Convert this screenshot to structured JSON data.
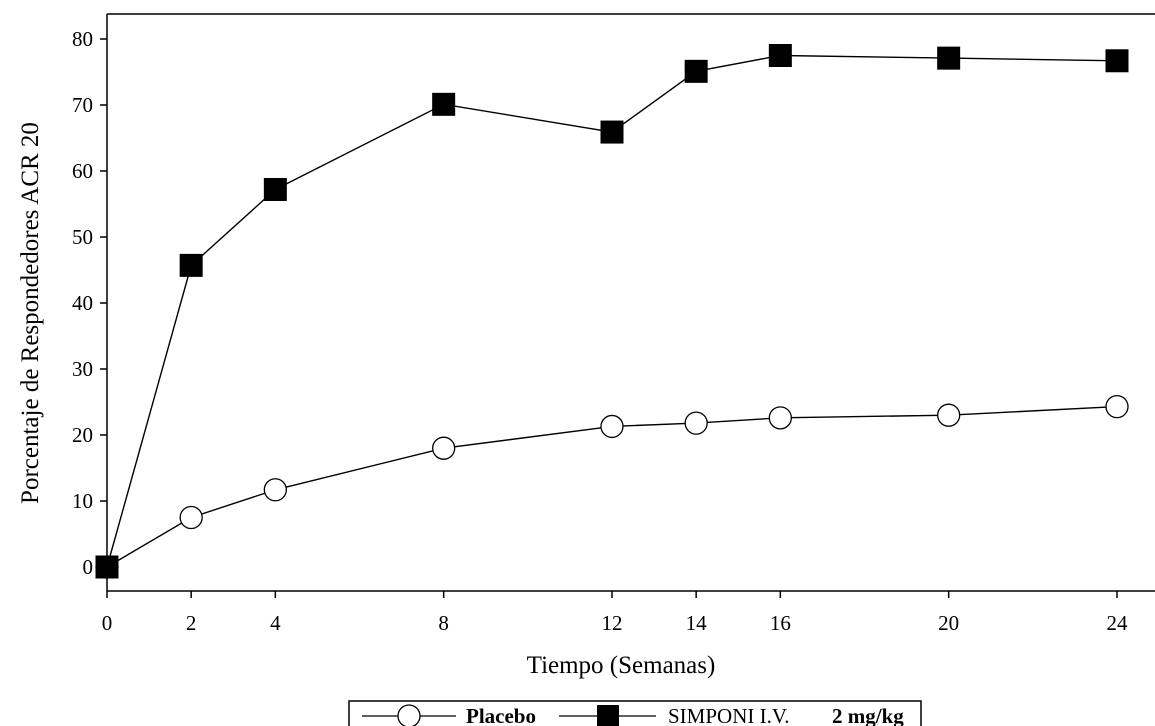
{
  "chart_data": {
    "type": "line",
    "xlabel": "Tiempo (Semanas)",
    "ylabel": "Porcentaje de Respondedores ACR 20",
    "x_ticks": [
      0,
      2,
      4,
      8,
      12,
      14,
      16,
      20,
      24
    ],
    "y_ticks": [
      0,
      10,
      20,
      30,
      40,
      50,
      60,
      70,
      80
    ],
    "xlim": [
      0,
      25
    ],
    "ylim": [
      -4,
      84
    ],
    "grid": false,
    "legend_position": "bottom-center",
    "series": [
      {
        "name": "Placebo",
        "marker": "open-circle",
        "x": [
          0,
          2,
          4,
          8,
          12,
          14,
          16,
          20,
          24
        ],
        "values": [
          0,
          7.5,
          11.7,
          18,
          21.3,
          21.8,
          22.6,
          23,
          24.3
        ]
      },
      {
        "name": "SIMPONI I.V. 2 mg/kg",
        "marker": "filled-square",
        "x": [
          0,
          2,
          4,
          8,
          12,
          14,
          16,
          20,
          24
        ],
        "values": [
          0,
          45.7,
          57.2,
          70.1,
          65.9,
          75.1,
          77.5,
          77.1,
          76.7
        ]
      }
    ]
  },
  "legend": {
    "placebo_label": "Placebo",
    "simponi_label_main": "SIMPONI I.V.",
    "simponi_label_dose": "2 mg/kg"
  }
}
